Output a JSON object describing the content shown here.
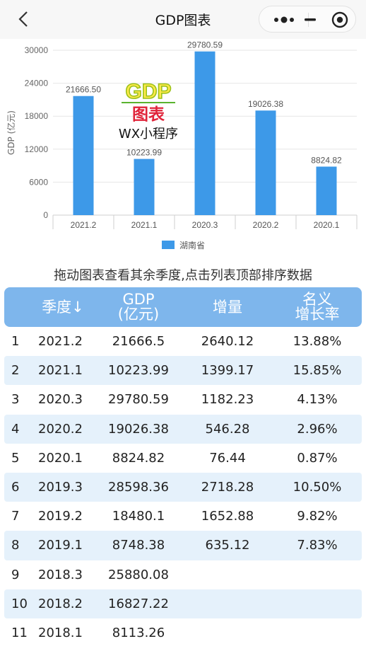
{
  "nav": {
    "title": "GDP图表"
  },
  "hint": "拖动图表查看其余季度,点击列表顶部排序数据",
  "logo": {
    "line1": "GDP",
    "line2": "图表",
    "line3": "WX小程序"
  },
  "table": {
    "headers": {
      "rank": "",
      "season": "季度↓",
      "gdp_line1": "GDP",
      "gdp_line2": "(亿元)",
      "inc": "增量",
      "rate_line1": "名义",
      "rate_line2": "增长率"
    },
    "rows": [
      {
        "rank": "1",
        "season": "2021.2",
        "gdp": "21666.5",
        "inc": "2640.12",
        "rate": "13.88%"
      },
      {
        "rank": "2",
        "season": "2021.1",
        "gdp": "10223.99",
        "inc": "1399.17",
        "rate": "15.85%"
      },
      {
        "rank": "3",
        "season": "2020.3",
        "gdp": "29780.59",
        "inc": "1182.23",
        "rate": "4.13%"
      },
      {
        "rank": "4",
        "season": "2020.2",
        "gdp": "19026.38",
        "inc": "546.28",
        "rate": "2.96%"
      },
      {
        "rank": "5",
        "season": "2020.1",
        "gdp": "8824.82",
        "inc": "76.44",
        "rate": "0.87%"
      },
      {
        "rank": "6",
        "season": "2019.3",
        "gdp": "28598.36",
        "inc": "2718.28",
        "rate": "10.50%"
      },
      {
        "rank": "7",
        "season": "2019.2",
        "gdp": "18480.1",
        "inc": "1652.88",
        "rate": "9.82%"
      },
      {
        "rank": "8",
        "season": "2019.1",
        "gdp": "8748.38",
        "inc": "635.12",
        "rate": "7.83%"
      },
      {
        "rank": "9",
        "season": "2018.3",
        "gdp": "25880.08",
        "inc": "",
        "rate": ""
      },
      {
        "rank": "10",
        "season": "2018.2",
        "gdp": "16827.22",
        "inc": "",
        "rate": ""
      },
      {
        "rank": "11",
        "season": "2018.1",
        "gdp": "8113.26",
        "inc": "",
        "rate": ""
      }
    ]
  },
  "chart_data": {
    "type": "bar",
    "categories": [
      "2021.2",
      "2021.1",
      "2020.3",
      "2020.2",
      "2020.1"
    ],
    "values": [
      21666.5,
      10223.99,
      29780.59,
      19026.38,
      8824.82
    ],
    "value_labels": [
      "21666.50",
      "10223.99",
      "29780.59",
      "19026.38",
      "8824.82"
    ],
    "ylabel": "GDP (亿元)",
    "yticks": [
      "0",
      "6000",
      "12000",
      "18000",
      "24000",
      "30000"
    ],
    "ylim": [
      0,
      30000
    ],
    "series_name": "湖南省",
    "bar_color": "#3d99e8",
    "legend": "bottom-center",
    "grid": true
  },
  "colors": {
    "header_bg": "#7eb6ec",
    "row_alt": "#e5f1fb",
    "bar": "#3d99e8"
  }
}
